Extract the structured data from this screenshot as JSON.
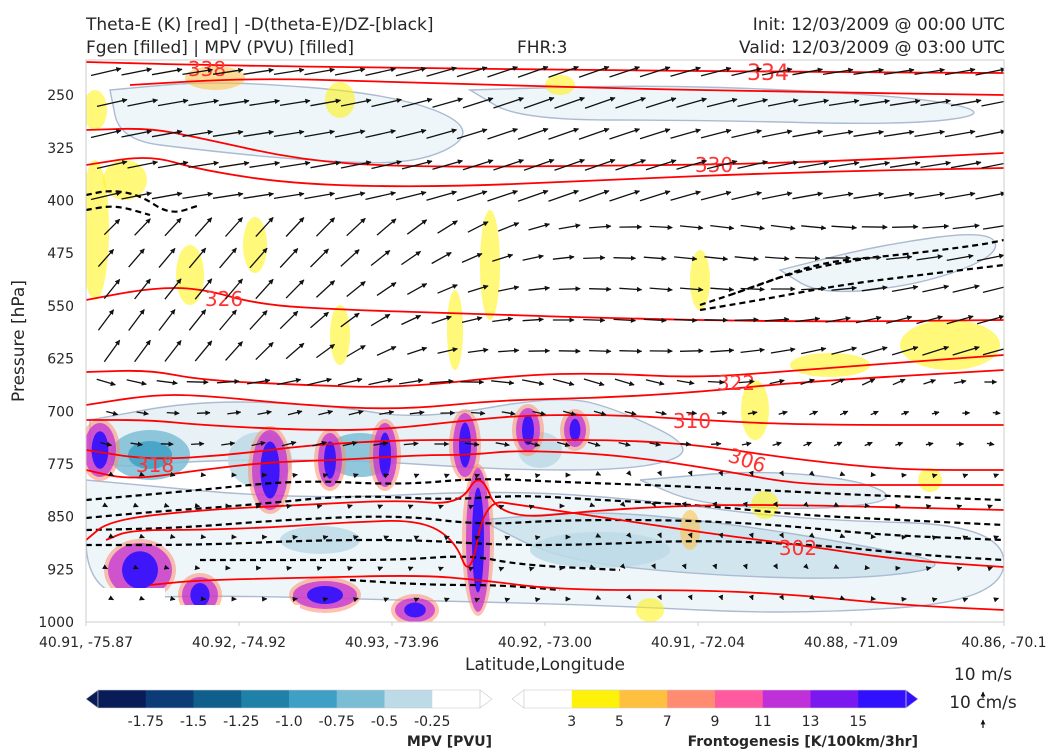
{
  "header": {
    "line1_left": "Theta-E (K) [red] | -D(theta-E)/DZ-[black]",
    "line2_left": "Fgen [filled] | MPV (PVU) [filled]",
    "center": "FHR:3",
    "line1_right": "Init: 12/03/2009 @ 00:00 UTC",
    "line2_right": "Valid: 12/03/2009 @ 03:00 UTC"
  },
  "chart_data": {
    "type": "cross-section",
    "xlabel": "Latitude,Longitude",
    "ylabel": "Pressure [hPa]",
    "x_ticks": [
      "40.91, -75.87",
      "40.92, -74.92",
      "40.93, -73.96",
      "40.92, -73.00",
      "40.91, -72.04",
      "40.88, -71.09",
      "40.86, -70.1"
    ],
    "y_ticks": [
      250,
      325,
      400,
      475,
      550,
      625,
      700,
      775,
      850,
      925,
      1000
    ],
    "ylim": [
      1000,
      200
    ],
    "theta_e_contours": [
      {
        "value": 338,
        "label": "338"
      },
      {
        "value": 334,
        "label": "334"
      },
      {
        "value": 330,
        "label": "330"
      },
      {
        "value": 326,
        "label": "326"
      },
      {
        "value": 322,
        "label": "322"
      },
      {
        "value": 310,
        "label": "310"
      },
      {
        "value": 306,
        "label": "306"
      },
      {
        "value": 318,
        "label": "318"
      },
      {
        "value": 302,
        "label": "302"
      }
    ],
    "mpv_colorbar": {
      "label": "MPV [PVU]",
      "ticks": [
        "-1.75",
        "-1.5",
        "-1.25",
        "-1.0",
        "-0.75",
        "-0.5",
        "-0.25"
      ],
      "colors": [
        "#081d58",
        "#0b3c78",
        "#0f5e8c",
        "#1f80a8",
        "#3ea0c4",
        "#7cbdd6",
        "#bcdbe6",
        "#ffffff"
      ]
    },
    "fgen_colorbar": {
      "label": "Frontogenesis [K/100km/3hr]",
      "ticks": [
        "3",
        "5",
        "7",
        "9",
        "11",
        "13",
        "15"
      ],
      "colors": [
        "#ffffff",
        "#fff20a",
        "#ffc040",
        "#ff8c70",
        "#ff5aa0",
        "#c030d8",
        "#7a18f0",
        "#3010ff"
      ]
    },
    "wind_reference": {
      "horizontal": "10 m/s",
      "vertical": "10 cm/s"
    }
  }
}
